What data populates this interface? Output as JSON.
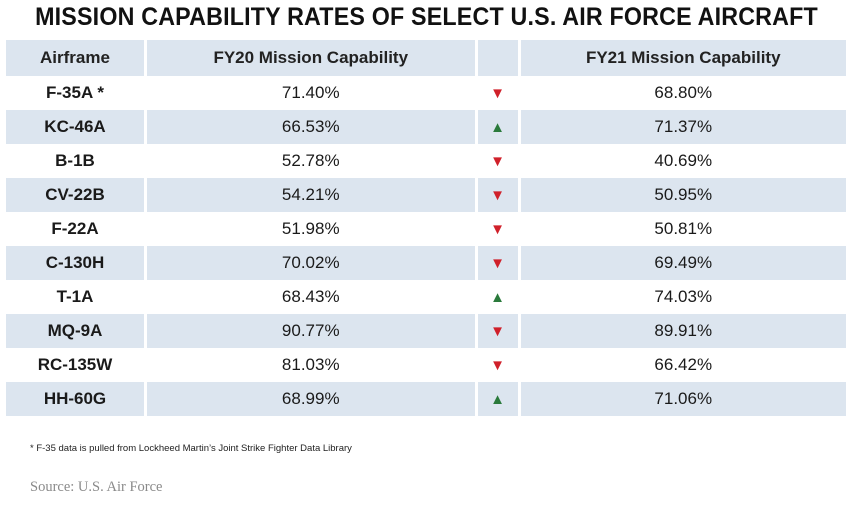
{
  "title": "MISSION CAPABILITY RATES OF SELECT U.S. AIR FORCE AIRCRAFT",
  "headers": {
    "airframe": "Airframe",
    "fy20": "FY20 Mission Capability",
    "trend": "",
    "fy21": "FY21 Mission Capability"
  },
  "rows": [
    {
      "airframe": "F-35A *",
      "fy20": "71.40%",
      "trend": "down",
      "fy21": "68.80%"
    },
    {
      "airframe": "KC-46A",
      "fy20": "66.53%",
      "trend": "up",
      "fy21": "71.37%"
    },
    {
      "airframe": "B-1B",
      "fy20": "52.78%",
      "trend": "down",
      "fy21": "40.69%"
    },
    {
      "airframe": "CV-22B",
      "fy20": "54.21%",
      "trend": "down",
      "fy21": "50.95%"
    },
    {
      "airframe": "F-22A",
      "fy20": "51.98%",
      "trend": "down",
      "fy21": "50.81%"
    },
    {
      "airframe": "C-130H",
      "fy20": "70.02%",
      "trend": "down",
      "fy21": "69.49%"
    },
    {
      "airframe": "T-1A",
      "fy20": "68.43%",
      "trend": "up",
      "fy21": "74.03%"
    },
    {
      "airframe": "MQ-9A",
      "fy20": "90.77%",
      "trend": "down",
      "fy21": "89.91%"
    },
    {
      "airframe": "RC-135W",
      "fy20": "81.03%",
      "trend": "down",
      "fy21": "66.42%"
    },
    {
      "airframe": "HH-60G",
      "fy20": "68.99%",
      "trend": "up",
      "fy21": "71.06%"
    }
  ],
  "icons": {
    "up": "triangle-up-icon",
    "down": "triangle-down-icon"
  },
  "colors": {
    "up": "#2a7a3b",
    "down": "#d0202a",
    "row_alt": "#dce5ef"
  },
  "footnote": "* F-35 data is pulled from Lockheed Martin’s Joint Strike Fighter Data Library",
  "source": "Source: U.S. Air Force",
  "chart_data": {
    "type": "table",
    "title": "MISSION CAPABILITY RATES OF SELECT U.S. AIR FORCE AIRCRAFT",
    "columns": [
      "Airframe",
      "FY20 Mission Capability",
      "FY21 Mission Capability"
    ],
    "categories": [
      "F-35A",
      "KC-46A",
      "B-1B",
      "CV-22B",
      "F-22A",
      "C-130H",
      "T-1A",
      "MQ-9A",
      "RC-135W",
      "HH-60G"
    ],
    "series": [
      {
        "name": "FY20 Mission Capability",
        "values": [
          71.4,
          66.53,
          52.78,
          54.21,
          51.98,
          70.02,
          68.43,
          90.77,
          81.03,
          68.99
        ]
      },
      {
        "name": "FY21 Mission Capability",
        "values": [
          68.8,
          71.37,
          40.69,
          50.95,
          50.81,
          69.49,
          74.03,
          89.91,
          66.42,
          71.06
        ]
      }
    ],
    "units": "%"
  }
}
